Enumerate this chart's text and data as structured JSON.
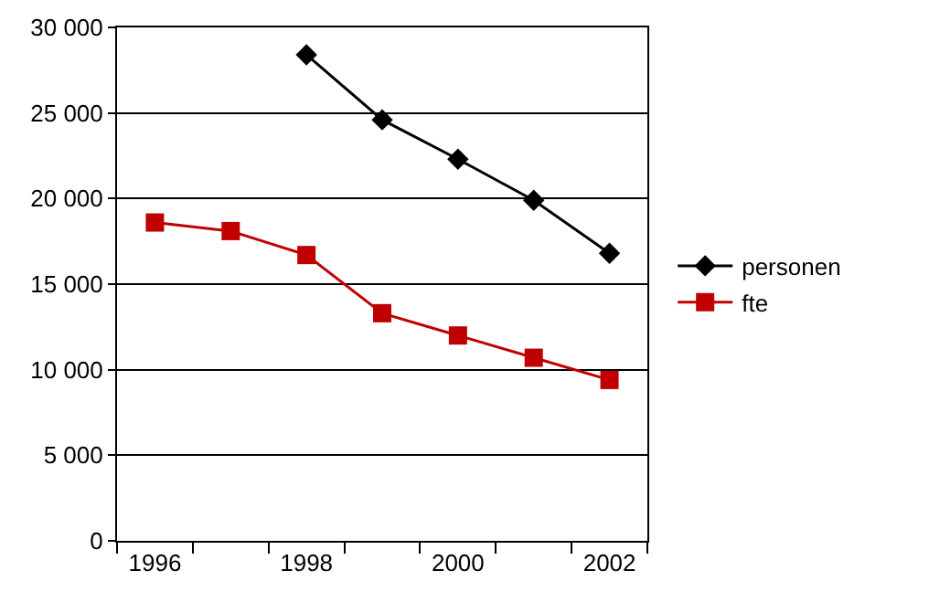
{
  "chart_data": {
    "type": "line",
    "categories": [
      "1996",
      null,
      "1998",
      null,
      "2000",
      null,
      "2002"
    ],
    "series": [
      {
        "name": "personen",
        "color": "#000000",
        "marker": "diamond",
        "values": [
          null,
          null,
          28400,
          24600,
          22300,
          19900,
          16800
        ]
      },
      {
        "name": "fte",
        "color": "#c00000",
        "marker": "square",
        "values": [
          18600,
          18100,
          16700,
          13300,
          12000,
          10700,
          9400
        ]
      }
    ],
    "ylim": [
      0,
      30000
    ],
    "yticks": [
      {
        "value": 0,
        "label": "0"
      },
      {
        "value": 5000,
        "label": "5 000"
      },
      {
        "value": 10000,
        "label": "10 000"
      },
      {
        "value": 15000,
        "label": "15 000"
      },
      {
        "value": 20000,
        "label": "20 000"
      },
      {
        "value": 25000,
        "label": "25 000"
      },
      {
        "value": 30000,
        "label": "30 000"
      }
    ],
    "grid": "y",
    "legend": "right"
  }
}
